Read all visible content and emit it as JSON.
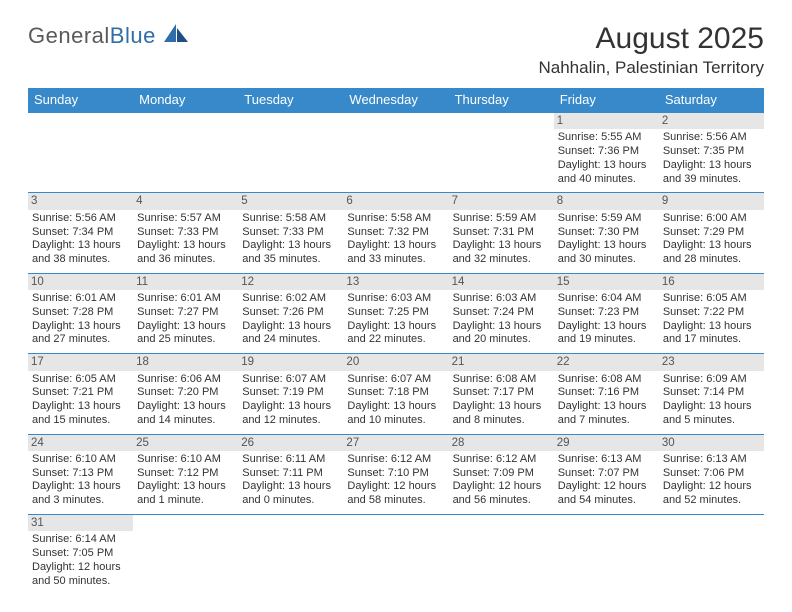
{
  "brand": {
    "name_a": "General",
    "name_b": "Blue"
  },
  "title": "August 2025",
  "location": "Nahhalin, Palestinian Territory",
  "colors": {
    "header_bg": "#3789c9",
    "header_text": "#ffffff",
    "daynum_bg": "#e6e6e6",
    "rule": "#3789c9",
    "text": "#333333",
    "logo_gray": "#5a5a5a",
    "logo_blue": "#2f6ea8"
  },
  "dayNames": [
    "Sunday",
    "Monday",
    "Tuesday",
    "Wednesday",
    "Thursday",
    "Friday",
    "Saturday"
  ],
  "weeks": [
    [
      null,
      null,
      null,
      null,
      null,
      {
        "n": "1",
        "sr": "Sunrise: 5:55 AM",
        "ss": "Sunset: 7:36 PM",
        "dl": "Daylight: 13 hours and 40 minutes."
      },
      {
        "n": "2",
        "sr": "Sunrise: 5:56 AM",
        "ss": "Sunset: 7:35 PM",
        "dl": "Daylight: 13 hours and 39 minutes."
      }
    ],
    [
      {
        "n": "3",
        "sr": "Sunrise: 5:56 AM",
        "ss": "Sunset: 7:34 PM",
        "dl": "Daylight: 13 hours and 38 minutes."
      },
      {
        "n": "4",
        "sr": "Sunrise: 5:57 AM",
        "ss": "Sunset: 7:33 PM",
        "dl": "Daylight: 13 hours and 36 minutes."
      },
      {
        "n": "5",
        "sr": "Sunrise: 5:58 AM",
        "ss": "Sunset: 7:33 PM",
        "dl": "Daylight: 13 hours and 35 minutes."
      },
      {
        "n": "6",
        "sr": "Sunrise: 5:58 AM",
        "ss": "Sunset: 7:32 PM",
        "dl": "Daylight: 13 hours and 33 minutes."
      },
      {
        "n": "7",
        "sr": "Sunrise: 5:59 AM",
        "ss": "Sunset: 7:31 PM",
        "dl": "Daylight: 13 hours and 32 minutes."
      },
      {
        "n": "8",
        "sr": "Sunrise: 5:59 AM",
        "ss": "Sunset: 7:30 PM",
        "dl": "Daylight: 13 hours and 30 minutes."
      },
      {
        "n": "9",
        "sr": "Sunrise: 6:00 AM",
        "ss": "Sunset: 7:29 PM",
        "dl": "Daylight: 13 hours and 28 minutes."
      }
    ],
    [
      {
        "n": "10",
        "sr": "Sunrise: 6:01 AM",
        "ss": "Sunset: 7:28 PM",
        "dl": "Daylight: 13 hours and 27 minutes."
      },
      {
        "n": "11",
        "sr": "Sunrise: 6:01 AM",
        "ss": "Sunset: 7:27 PM",
        "dl": "Daylight: 13 hours and 25 minutes."
      },
      {
        "n": "12",
        "sr": "Sunrise: 6:02 AM",
        "ss": "Sunset: 7:26 PM",
        "dl": "Daylight: 13 hours and 24 minutes."
      },
      {
        "n": "13",
        "sr": "Sunrise: 6:03 AM",
        "ss": "Sunset: 7:25 PM",
        "dl": "Daylight: 13 hours and 22 minutes."
      },
      {
        "n": "14",
        "sr": "Sunrise: 6:03 AM",
        "ss": "Sunset: 7:24 PM",
        "dl": "Daylight: 13 hours and 20 minutes."
      },
      {
        "n": "15",
        "sr": "Sunrise: 6:04 AM",
        "ss": "Sunset: 7:23 PM",
        "dl": "Daylight: 13 hours and 19 minutes."
      },
      {
        "n": "16",
        "sr": "Sunrise: 6:05 AM",
        "ss": "Sunset: 7:22 PM",
        "dl": "Daylight: 13 hours and 17 minutes."
      }
    ],
    [
      {
        "n": "17",
        "sr": "Sunrise: 6:05 AM",
        "ss": "Sunset: 7:21 PM",
        "dl": "Daylight: 13 hours and 15 minutes."
      },
      {
        "n": "18",
        "sr": "Sunrise: 6:06 AM",
        "ss": "Sunset: 7:20 PM",
        "dl": "Daylight: 13 hours and 14 minutes."
      },
      {
        "n": "19",
        "sr": "Sunrise: 6:07 AM",
        "ss": "Sunset: 7:19 PM",
        "dl": "Daylight: 13 hours and 12 minutes."
      },
      {
        "n": "20",
        "sr": "Sunrise: 6:07 AM",
        "ss": "Sunset: 7:18 PM",
        "dl": "Daylight: 13 hours and 10 minutes."
      },
      {
        "n": "21",
        "sr": "Sunrise: 6:08 AM",
        "ss": "Sunset: 7:17 PM",
        "dl": "Daylight: 13 hours and 8 minutes."
      },
      {
        "n": "22",
        "sr": "Sunrise: 6:08 AM",
        "ss": "Sunset: 7:16 PM",
        "dl": "Daylight: 13 hours and 7 minutes."
      },
      {
        "n": "23",
        "sr": "Sunrise: 6:09 AM",
        "ss": "Sunset: 7:14 PM",
        "dl": "Daylight: 13 hours and 5 minutes."
      }
    ],
    [
      {
        "n": "24",
        "sr": "Sunrise: 6:10 AM",
        "ss": "Sunset: 7:13 PM",
        "dl": "Daylight: 13 hours and 3 minutes."
      },
      {
        "n": "25",
        "sr": "Sunrise: 6:10 AM",
        "ss": "Sunset: 7:12 PM",
        "dl": "Daylight: 13 hours and 1 minute."
      },
      {
        "n": "26",
        "sr": "Sunrise: 6:11 AM",
        "ss": "Sunset: 7:11 PM",
        "dl": "Daylight: 13 hours and 0 minutes."
      },
      {
        "n": "27",
        "sr": "Sunrise: 6:12 AM",
        "ss": "Sunset: 7:10 PM",
        "dl": "Daylight: 12 hours and 58 minutes."
      },
      {
        "n": "28",
        "sr": "Sunrise: 6:12 AM",
        "ss": "Sunset: 7:09 PM",
        "dl": "Daylight: 12 hours and 56 minutes."
      },
      {
        "n": "29",
        "sr": "Sunrise: 6:13 AM",
        "ss": "Sunset: 7:07 PM",
        "dl": "Daylight: 12 hours and 54 minutes."
      },
      {
        "n": "30",
        "sr": "Sunrise: 6:13 AM",
        "ss": "Sunset: 7:06 PM",
        "dl": "Daylight: 12 hours and 52 minutes."
      }
    ],
    [
      {
        "n": "31",
        "sr": "Sunrise: 6:14 AM",
        "ss": "Sunset: 7:05 PM",
        "dl": "Daylight: 12 hours and 50 minutes."
      },
      null,
      null,
      null,
      null,
      null,
      null
    ]
  ]
}
